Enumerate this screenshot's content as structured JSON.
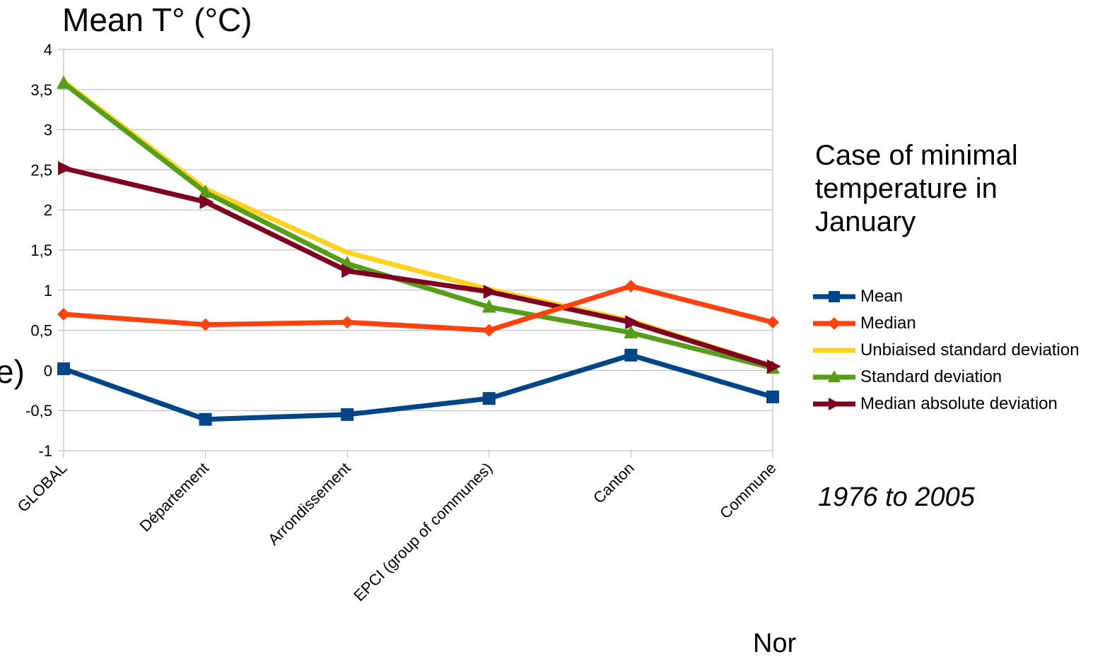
{
  "chart_data": {
    "type": "line",
    "ylabel": "Mean T° (°C)",
    "side_title": "Case of minimal temperature in January",
    "period": "1976 to 2005",
    "partial_left_text": "e)",
    "partial_bottom_text": "Nor",
    "categories": [
      "GLOBAL",
      "Département",
      "Arrondissement",
      "EPCI (group of communes)",
      "Canton",
      "Commune"
    ],
    "ylim": [
      -1,
      4
    ],
    "yticks": [
      -1,
      -0.5,
      0,
      0.5,
      1,
      1.5,
      2,
      2.5,
      3,
      3.5,
      4
    ],
    "ytick_labels": [
      "-1",
      "-0,5",
      "0",
      "0,5",
      "1",
      "1,5",
      "2",
      "2,5",
      "3",
      "3,5",
      "4"
    ],
    "grid": true,
    "legend_position": "right",
    "series": [
      {
        "name": "Unbiaised standard deviation",
        "color": "#ffd320",
        "marker": "none",
        "values": [
          3.6,
          2.26,
          1.47,
          1.01,
          0.62,
          0.05
        ]
      },
      {
        "name": "Standard deviation",
        "color": "#579d1c",
        "marker": "triangle",
        "values": [
          3.58,
          2.22,
          1.33,
          0.79,
          0.47,
          0.03
        ]
      },
      {
        "name": "Median absolute deviation",
        "color": "#7e0021",
        "marker": "arrow",
        "values": [
          2.52,
          2.1,
          1.24,
          0.98,
          0.6,
          0.05
        ]
      },
      {
        "name": "Median",
        "color": "#ff420e",
        "marker": "diamond",
        "values": [
          0.7,
          0.57,
          0.6,
          0.5,
          1.05,
          0.6
        ]
      },
      {
        "name": "Mean",
        "color": "#004586",
        "marker": "square",
        "values": [
          0.02,
          -0.61,
          -0.55,
          -0.35,
          0.19,
          -0.33
        ]
      }
    ],
    "legend_order": [
      "Mean",
      "Median",
      "Unbiaised standard deviation",
      "Standard deviation",
      "Median absolute deviation"
    ]
  }
}
